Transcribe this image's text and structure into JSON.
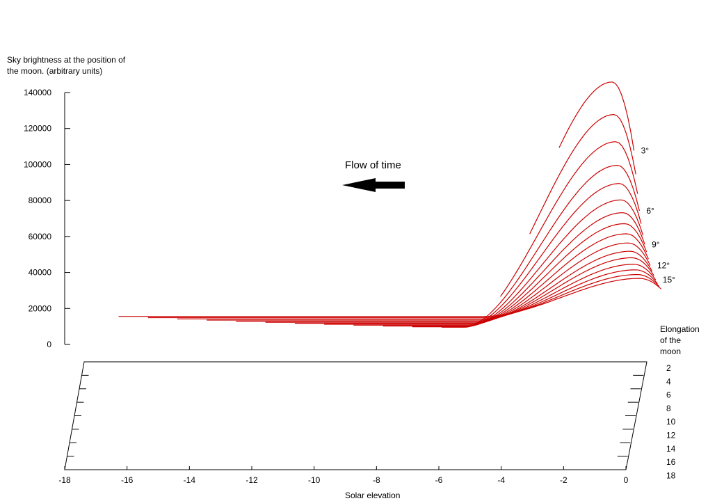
{
  "chart_data": {
    "type": "line",
    "y_axis_label_line1": "Sky brightness at the position of",
    "y_axis_label_line2": "the moon. (arbitrary units)",
    "x_axis_label": "Solar elevation",
    "depth_axis_label_line1": "Elongation",
    "depth_axis_label_line2": "of the",
    "depth_axis_label_line3": "moon",
    "annotation": "Flow of time",
    "ylim": [
      0,
      140000
    ],
    "xlim": [
      -18,
      0
    ],
    "y_ticks": [
      0,
      20000,
      40000,
      60000,
      80000,
      100000,
      120000,
      140000
    ],
    "x_ticks": [
      -18,
      -16,
      -14,
      -12,
      -10,
      -8,
      -6,
      -4,
      -2,
      0
    ],
    "depth_ticks": [
      2,
      4,
      6,
      8,
      10,
      12,
      14,
      16,
      18
    ],
    "curve_labels": [
      {
        "elongation": 3,
        "text": "3°"
      },
      {
        "elongation": 6,
        "text": "6°"
      },
      {
        "elongation": 9,
        "text": "9°"
      },
      {
        "elongation": 12,
        "text": "12°"
      },
      {
        "elongation": 15,
        "text": "15°"
      }
    ],
    "series": [
      {
        "elongation": 3,
        "x_start": -2.2,
        "peak": 145000
      },
      {
        "elongation": 4,
        "x_start": -3.2,
        "peak": 126000
      },
      {
        "elongation": 5,
        "x_start": -4.2,
        "peak": 110000
      },
      {
        "elongation": 6,
        "x_start": -5.2,
        "peak": 96000
      },
      {
        "elongation": 7,
        "x_start": -6.2,
        "peak": 85000
      },
      {
        "elongation": 8,
        "x_start": -7.2,
        "peak": 75000
      },
      {
        "elongation": 9,
        "x_start": -8.2,
        "peak": 67000
      },
      {
        "elongation": 10,
        "x_start": -9.2,
        "peak": 60000
      },
      {
        "elongation": 11,
        "x_start": -10.2,
        "peak": 53500
      },
      {
        "elongation": 12,
        "x_start": -11.2,
        "peak": 47500
      },
      {
        "elongation": 13,
        "x_start": -12.2,
        "peak": 42000
      },
      {
        "elongation": 14,
        "x_start": -13.2,
        "peak": 37500
      },
      {
        "elongation": 15,
        "x_start": -14.2,
        "peak": 33000
      },
      {
        "elongation": 16,
        "x_start": -15.2,
        "peak": 29000
      },
      {
        "elongation": 17,
        "x_start": -16.2,
        "peak": 25500
      },
      {
        "elongation": 18,
        "x_start": -17.2,
        "peak": 22500
      }
    ],
    "curve_color": "#cc0000",
    "arrow_color": "#000000"
  }
}
